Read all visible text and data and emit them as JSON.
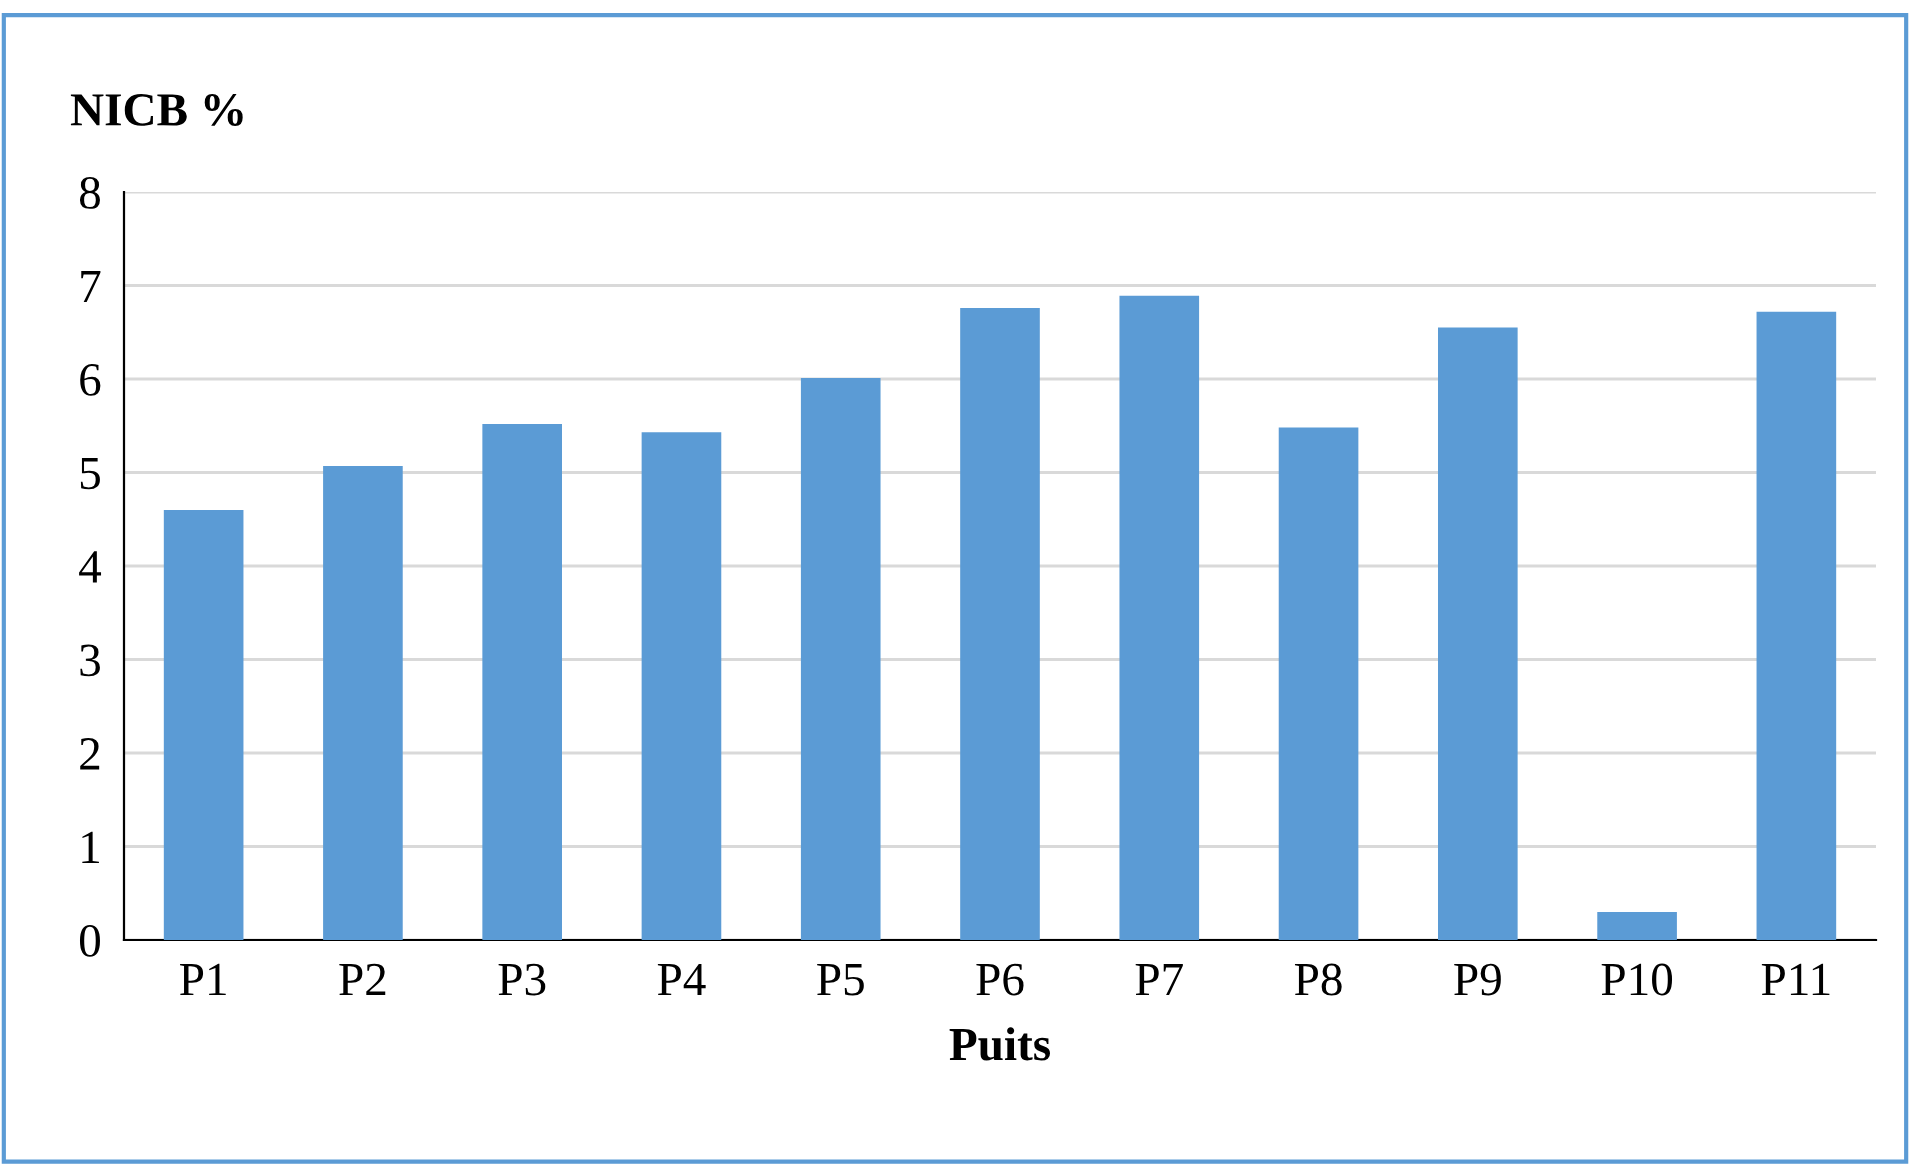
{
  "chart_data": {
    "type": "bar",
    "ylabel": "NICB %",
    "xlabel": "Puits",
    "categories": [
      "P1",
      "P2",
      "P3",
      "P4",
      "P5",
      "P6",
      "P7",
      "P8",
      "P9",
      "P10",
      "P11"
    ],
    "values": [
      4.6,
      5.07,
      5.52,
      5.43,
      6.01,
      6.76,
      6.89,
      5.48,
      6.55,
      0.3,
      6.72
    ],
    "color": "#5b9bd5",
    "ylim": [
      0,
      8
    ],
    "yticks": [
      0,
      1,
      2,
      3,
      4,
      5,
      6,
      7,
      8
    ],
    "grid": "y"
  }
}
